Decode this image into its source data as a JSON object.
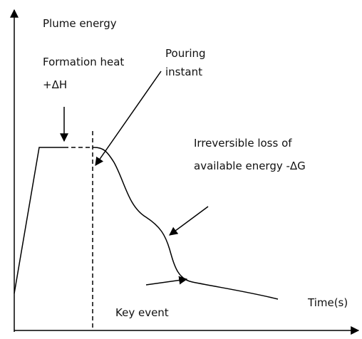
{
  "axes": {
    "y_label": "Plume energy",
    "x_label": "Time(s)"
  },
  "annotations": {
    "formation_heat": [
      "Formation heat",
      "+ΔH"
    ],
    "pouring_instant": [
      "Pouring",
      "instant"
    ],
    "irreversible_loss": [
      "Irreversible loss of",
      "available energy -ΔG"
    ],
    "key_event": "Key event"
  }
}
